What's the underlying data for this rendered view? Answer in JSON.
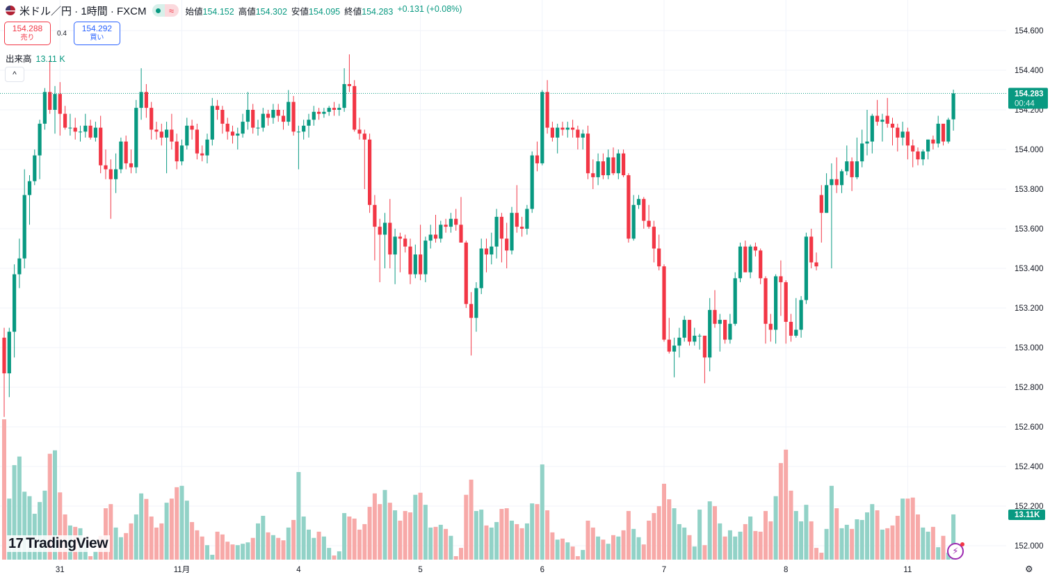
{
  "header": {
    "symbol_title": "米ドル／円 · 1時間 · FXCM",
    "flag_icon": "us-flag-icon",
    "status_icon": "market-open-dot-icon",
    "delay_icon": "approx-icon",
    "delay_symbol": "≈",
    "ohlc": [
      {
        "label": "始値",
        "value": "154.152"
      },
      {
        "label": "高値",
        "value": "154.302"
      },
      {
        "label": "安値",
        "value": "154.095"
      },
      {
        "label": "終値",
        "value": "154.283"
      }
    ],
    "change": "+0.131 (+0.08%)"
  },
  "trade": {
    "sell_price": "154.288",
    "sell_label": "売り",
    "spread": "0.4",
    "buy_price": "154.292",
    "buy_label": "買い"
  },
  "volume_legend": {
    "label": "出来高",
    "value": "13.11 K"
  },
  "collapse_symbol": "^",
  "price_tag": {
    "price": "154.283",
    "countdown": "00:44"
  },
  "volume_tag": "13.11K",
  "logo": "TradingView",
  "colors": {
    "up": "#089981",
    "down": "#f23645",
    "up_volume": "#92d2c7",
    "down_volume": "#f7a9a8",
    "grid": "#f0f3fa"
  },
  "chart_data": {
    "type": "candlestick",
    "timeframe": "1時間",
    "y_ticks": [
      "154.600",
      "154.400",
      "154.200",
      "154.000",
      "153.800",
      "153.600",
      "153.400",
      "153.200",
      "153.000",
      "152.800",
      "152.600",
      "152.400",
      "152.200",
      "152.000"
    ],
    "ylim": [
      152.0,
      154.6
    ],
    "x_ticks": [
      {
        "label": "31",
        "index": 11
      },
      {
        "label": "11月",
        "index": 35
      },
      {
        "label": "4",
        "index": 58
      },
      {
        "label": "5",
        "index": 82
      },
      {
        "label": "6",
        "index": 106
      },
      {
        "label": "7",
        "index": 130
      },
      {
        "label": "8",
        "index": 154
      },
      {
        "label": "11",
        "index": 178
      }
    ],
    "grid": true,
    "last_price": 154.283,
    "ohlc": [
      [
        153.05,
        153.1,
        152.65,
        152.87
      ],
      [
        152.87,
        153.1,
        152.75,
        153.08
      ],
      [
        153.08,
        153.42,
        152.95,
        153.37
      ],
      [
        153.37,
        153.55,
        153.3,
        153.45
      ],
      [
        153.45,
        153.9,
        153.4,
        153.77
      ],
      [
        153.77,
        153.87,
        153.62,
        153.84
      ],
      [
        153.84,
        154.0,
        153.82,
        153.97
      ],
      [
        153.97,
        154.15,
        153.85,
        154.13
      ],
      [
        154.13,
        154.31,
        154.1,
        154.29
      ],
      [
        154.29,
        154.45,
        154.18,
        154.2
      ],
      [
        154.2,
        154.32,
        154.08,
        154.28
      ],
      [
        154.28,
        154.34,
        154.07,
        154.18
      ],
      [
        154.18,
        154.22,
        154.1,
        154.11
      ],
      [
        154.11,
        154.18,
        154.07,
        154.11
      ],
      [
        154.11,
        154.16,
        154.05,
        154.09
      ],
      [
        154.09,
        154.12,
        154.04,
        154.09
      ],
      [
        154.09,
        154.18,
        154.06,
        154.12
      ],
      [
        154.12,
        154.15,
        154.05,
        154.06
      ],
      [
        154.06,
        154.14,
        154.04,
        154.11
      ],
      [
        154.11,
        154.17,
        153.88,
        153.92
      ],
      [
        153.92,
        154.0,
        153.85,
        153.9
      ],
      [
        153.9,
        153.95,
        153.65,
        153.85
      ],
      [
        153.85,
        153.98,
        153.78,
        153.9
      ],
      [
        153.9,
        154.06,
        153.88,
        154.04
      ],
      [
        154.04,
        154.07,
        153.9,
        153.93
      ],
      [
        153.93,
        154.0,
        153.88,
        153.91
      ],
      [
        153.91,
        154.25,
        153.88,
        154.21
      ],
      [
        154.21,
        154.41,
        154.15,
        154.29
      ],
      [
        154.29,
        154.33,
        154.16,
        154.21
      ],
      [
        154.21,
        154.24,
        154.05,
        154.1
      ],
      [
        154.1,
        154.14,
        154.05,
        154.09
      ],
      [
        154.09,
        154.13,
        154.02,
        154.06
      ],
      [
        154.06,
        154.14,
        153.88,
        154.1
      ],
      [
        154.1,
        154.18,
        154.0,
        154.04
      ],
      [
        154.04,
        154.08,
        153.9,
        153.94
      ],
      [
        153.94,
        154.05,
        153.92,
        154.02
      ],
      [
        154.02,
        154.16,
        154.0,
        154.12
      ],
      [
        154.12,
        154.15,
        154.05,
        154.1
      ],
      [
        154.1,
        154.13,
        153.95,
        153.98
      ],
      [
        153.98,
        154.02,
        153.94,
        153.97
      ],
      [
        153.97,
        154.08,
        153.93,
        154.05
      ],
      [
        154.05,
        154.26,
        154.02,
        154.22
      ],
      [
        154.22,
        154.25,
        154.15,
        154.2
      ],
      [
        154.2,
        154.22,
        154.08,
        154.13
      ],
      [
        154.13,
        154.16,
        154.05,
        154.09
      ],
      [
        154.09,
        154.12,
        154.03,
        154.07
      ],
      [
        154.07,
        154.11,
        154.0,
        154.08
      ],
      [
        154.08,
        154.18,
        154.06,
        154.14
      ],
      [
        154.14,
        154.29,
        154.1,
        154.2
      ],
      [
        154.2,
        154.23,
        154.08,
        154.11
      ],
      [
        154.11,
        154.15,
        154.07,
        154.11
      ],
      [
        154.11,
        154.21,
        154.09,
        154.18
      ],
      [
        154.18,
        154.2,
        154.12,
        154.16
      ],
      [
        154.16,
        154.23,
        154.13,
        154.2
      ],
      [
        154.2,
        154.23,
        154.14,
        154.17
      ],
      [
        154.17,
        154.2,
        154.1,
        154.14
      ],
      [
        154.14,
        154.3,
        154.12,
        154.24
      ],
      [
        154.24,
        154.27,
        154.07,
        154.09
      ],
      [
        154.09,
        154.12,
        153.9,
        154.09
      ],
      [
        154.09,
        154.15,
        154.05,
        154.12
      ],
      [
        154.12,
        154.18,
        154.06,
        154.15
      ],
      [
        154.15,
        154.22,
        154.12,
        154.19
      ],
      [
        154.19,
        154.21,
        154.15,
        154.18
      ],
      [
        154.18,
        154.21,
        154.16,
        154.19
      ],
      [
        154.19,
        154.22,
        154.17,
        154.21
      ],
      [
        154.21,
        154.24,
        154.17,
        154.2
      ],
      [
        154.2,
        154.23,
        154.17,
        154.21
      ],
      [
        154.21,
        154.41,
        154.19,
        154.33
      ],
      [
        154.33,
        154.48,
        154.29,
        154.32
      ],
      [
        154.32,
        154.35,
        154.09,
        154.1
      ],
      [
        154.1,
        154.16,
        154.05,
        154.08
      ],
      [
        154.08,
        154.1,
        153.8,
        154.05
      ],
      [
        154.05,
        154.08,
        153.68,
        153.72
      ],
      [
        153.72,
        153.77,
        153.44,
        153.61
      ],
      [
        153.61,
        153.65,
        153.33,
        153.57
      ],
      [
        153.57,
        153.68,
        153.4,
        153.63
      ],
      [
        153.63,
        153.75,
        153.4,
        153.47
      ],
      [
        153.47,
        153.6,
        153.32,
        153.56
      ],
      [
        153.56,
        153.58,
        153.38,
        153.55
      ],
      [
        153.55,
        153.57,
        153.48,
        153.51
      ],
      [
        153.51,
        153.55,
        153.32,
        153.37
      ],
      [
        153.37,
        153.52,
        153.35,
        153.47
      ],
      [
        153.47,
        153.62,
        153.34,
        153.37
      ],
      [
        153.37,
        153.56,
        153.33,
        153.54
      ],
      [
        153.54,
        153.62,
        153.5,
        153.57
      ],
      [
        153.57,
        153.67,
        153.53,
        153.55
      ],
      [
        153.55,
        153.64,
        153.53,
        153.62
      ],
      [
        153.62,
        153.65,
        153.58,
        153.61
      ],
      [
        153.61,
        153.68,
        153.58,
        153.65
      ],
      [
        153.65,
        153.7,
        153.59,
        153.62
      ],
      [
        153.62,
        153.76,
        153.53,
        153.53
      ],
      [
        153.53,
        153.54,
        153.2,
        153.22
      ],
      [
        153.22,
        153.28,
        152.96,
        153.15
      ],
      [
        153.15,
        153.33,
        153.08,
        153.3
      ],
      [
        153.3,
        153.55,
        153.27,
        153.5
      ],
      [
        153.5,
        153.55,
        153.38,
        153.47
      ],
      [
        153.47,
        153.58,
        153.42,
        153.51
      ],
      [
        153.51,
        153.7,
        153.45,
        153.66
      ],
      [
        153.66,
        153.68,
        153.43,
        153.55
      ],
      [
        153.55,
        153.63,
        153.4,
        153.49
      ],
      [
        153.49,
        153.71,
        153.47,
        153.68
      ],
      [
        153.68,
        153.82,
        153.58,
        153.61
      ],
      [
        153.61,
        153.66,
        153.56,
        153.6
      ],
      [
        153.6,
        153.72,
        153.57,
        153.7
      ],
      [
        153.7,
        153.99,
        153.68,
        153.97
      ],
      [
        153.97,
        154.04,
        153.89,
        153.93
      ],
      [
        153.93,
        154.3,
        153.92,
        154.29
      ],
      [
        154.29,
        154.35,
        154.08,
        154.11
      ],
      [
        154.11,
        154.14,
        154.04,
        154.06
      ],
      [
        154.06,
        154.13,
        153.98,
        154.11
      ],
      [
        154.11,
        154.14,
        154.07,
        154.1
      ],
      [
        154.1,
        154.14,
        154.06,
        154.11
      ],
      [
        154.11,
        154.15,
        154.06,
        154.1
      ],
      [
        154.1,
        154.12,
        154.0,
        154.06
      ],
      [
        154.06,
        154.1,
        154.0,
        154.08
      ],
      [
        154.08,
        154.12,
        153.85,
        153.88
      ],
      [
        153.88,
        153.95,
        153.8,
        153.86
      ],
      [
        153.86,
        153.98,
        153.82,
        153.94
      ],
      [
        153.94,
        153.98,
        153.85,
        153.87
      ],
      [
        153.87,
        154.0,
        153.85,
        153.96
      ],
      [
        153.96,
        154.01,
        153.87,
        153.88
      ],
      [
        153.88,
        154.0,
        153.85,
        153.98
      ],
      [
        153.98,
        154.0,
        153.86,
        153.87
      ],
      [
        153.87,
        153.88,
        153.53,
        153.55
      ],
      [
        153.55,
        153.77,
        153.54,
        153.72
      ],
      [
        153.72,
        153.77,
        153.7,
        153.75
      ],
      [
        153.75,
        153.76,
        153.6,
        153.64
      ],
      [
        153.64,
        153.72,
        153.6,
        153.61
      ],
      [
        153.61,
        153.64,
        153.43,
        153.5
      ],
      [
        153.5,
        153.57,
        153.39,
        153.41
      ],
      [
        153.41,
        153.42,
        153.03,
        153.04
      ],
      [
        153.04,
        153.15,
        152.97,
        152.98
      ],
      [
        152.98,
        153.05,
        152.85,
        153.01
      ],
      [
        153.01,
        153.1,
        152.95,
        153.05
      ],
      [
        153.05,
        153.16,
        153.03,
        153.14
      ],
      [
        153.14,
        153.14,
        153.01,
        153.03
      ],
      [
        153.03,
        153.1,
        153.01,
        153.06
      ],
      [
        153.06,
        153.07,
        152.99,
        153.06
      ],
      [
        153.06,
        153.06,
        152.82,
        152.95
      ],
      [
        152.95,
        153.25,
        152.88,
        153.19
      ],
      [
        153.19,
        153.29,
        153.1,
        153.12
      ],
      [
        153.12,
        153.17,
        152.98,
        153.14
      ],
      [
        153.14,
        153.14,
        153.02,
        153.04
      ],
      [
        153.04,
        153.17,
        153.02,
        153.12
      ],
      [
        153.12,
        153.38,
        153.11,
        153.35
      ],
      [
        153.35,
        153.53,
        153.33,
        153.51
      ],
      [
        153.51,
        153.54,
        153.38,
        153.38
      ],
      [
        153.38,
        153.52,
        153.35,
        153.51
      ],
      [
        153.51,
        153.53,
        153.46,
        153.49
      ],
      [
        153.49,
        153.5,
        153.32,
        153.35
      ],
      [
        153.35,
        153.36,
        153.02,
        153.12
      ],
      [
        153.12,
        153.17,
        153.03,
        153.09
      ],
      [
        153.09,
        153.37,
        153.02,
        153.36
      ],
      [
        153.36,
        153.44,
        153.16,
        153.33
      ],
      [
        153.33,
        153.34,
        153.02,
        153.13
      ],
      [
        153.13,
        153.17,
        153.03,
        153.06
      ],
      [
        153.06,
        153.25,
        153.05,
        153.09
      ],
      [
        153.09,
        153.26,
        153.05,
        153.24
      ],
      [
        153.24,
        153.58,
        153.22,
        153.56
      ],
      [
        153.56,
        153.6,
        153.4,
        153.43
      ],
      [
        153.43,
        153.48,
        153.39,
        153.41
      ],
      [
        153.77,
        153.82,
        153.53,
        153.68
      ],
      [
        153.68,
        153.88,
        153.68,
        153.82
      ],
      [
        153.82,
        153.93,
        153.4,
        153.85
      ],
      [
        153.85,
        153.96,
        153.78,
        153.82
      ],
      [
        153.82,
        153.9,
        153.78,
        153.89
      ],
      [
        153.89,
        154.02,
        153.87,
        153.94
      ],
      [
        153.94,
        153.96,
        153.79,
        153.86
      ],
      [
        153.86,
        154.06,
        153.85,
        153.94
      ],
      [
        153.94,
        154.1,
        153.91,
        154.03
      ],
      [
        154.03,
        154.2,
        153.97,
        154.04
      ],
      [
        154.04,
        154.18,
        153.98,
        154.17
      ],
      [
        154.17,
        154.25,
        154.12,
        154.14
      ],
      [
        154.14,
        154.18,
        154.04,
        154.15
      ],
      [
        154.17,
        154.26,
        154.11,
        154.13
      ],
      [
        154.13,
        154.16,
        154.02,
        154.11
      ],
      [
        154.11,
        154.13,
        153.99,
        154.06
      ],
      [
        154.06,
        154.14,
        154.02,
        154.09
      ],
      [
        154.09,
        154.11,
        153.95,
        154.02
      ],
      [
        154.02,
        154.05,
        153.91,
        153.99
      ],
      [
        153.99,
        154.01,
        153.92,
        153.95
      ],
      [
        153.95,
        154.0,
        153.92,
        153.99
      ],
      [
        153.99,
        154.05,
        153.95,
        154.05
      ],
      [
        154.05,
        154.07,
        154.0,
        154.03
      ],
      [
        154.03,
        154.17,
        154.01,
        154.13
      ],
      [
        154.13,
        154.13,
        154.02,
        154.04
      ],
      [
        154.04,
        154.16,
        154.03,
        154.15
      ],
      [
        154.152,
        154.302,
        154.095,
        154.283
      ]
    ],
    "volume_k": [
      40.7,
      17.7,
      27.4,
      29.9,
      19.7,
      18.4,
      13.3,
      16.7,
      20.0,
      30.7,
      31.7,
      19.5,
      13.1,
      9.9,
      9.5,
      9.1,
      5.0,
      1.0,
      2.4,
      6.9,
      14.9,
      16.1,
      9.3,
      6.5,
      7.7,
      10.5,
      13.1,
      19.2,
      17.6,
      12.5,
      9.3,
      10.5,
      16.5,
      17.7,
      21.0,
      21.4,
      17.1,
      10.9,
      8.5,
      6.7,
      4.2,
      1.4,
      8.1,
      7.3,
      5.2,
      4.4,
      4.2,
      4.6,
      5.0,
      6.3,
      10.5,
      12.7,
      7.9,
      7.1,
      6.3,
      5.6,
      9.3,
      11.5,
      25.4,
      12.5,
      8.7,
      6.3,
      8.1,
      6.7,
      3.4,
      1.2,
      2.4,
      13.5,
      12.5,
      11.9,
      8.7,
      10.3,
      15.3,
      19.2,
      16.1,
      20.2,
      16.5,
      14.3,
      11.3,
      14.1,
      13.7,
      18.8,
      19.4,
      15.9,
      9.3,
      9.5,
      10.1,
      8.9,
      6.9,
      1.0,
      3.4,
      18.8,
      23.2,
      14.1,
      14.5,
      9.9,
      9.3,
      10.9,
      14.7,
      14.9,
      11.3,
      10.3,
      9.1,
      10.5,
      16.3,
      16.1,
      27.6,
      14.3,
      7.9,
      5.8,
      6.1,
      5.0,
      3.8,
      1.0,
      2.8,
      11.3,
      9.3,
      6.7,
      5.8,
      4.6,
      7.1,
      6.7,
      8.5,
      14.1,
      8.9,
      6.5,
      4.4,
      11.3,
      13.5,
      15.5,
      22.0,
      17.5,
      14.9,
      10.3,
      9.3,
      7.1,
      3.8,
      14.5,
      4.2,
      16.9,
      15.5,
      10.5,
      6.7,
      8.5,
      6.7,
      8.1,
      10.3,
      12.5,
      8.3,
      8.1,
      14.1,
      11.1,
      18.4,
      28.0,
      31.9,
      20.0,
      14.1,
      11.1,
      15.9,
      11.1,
      3.4,
      2.0,
      8.9,
      21.4,
      14.9,
      9.1,
      10.1,
      8.9,
      11.7,
      11.5,
      13.7,
      16.1,
      14.3,
      8.7,
      9.1,
      9.9,
      12.7,
      17.7,
      17.7,
      18.0,
      13.1,
      9.3,
      8.1,
      9.5,
      3.6,
      6.9,
      2.0,
      13.11
    ]
  },
  "icons": {
    "lightning": "lightning-icon",
    "settings": "settings-icon",
    "logo": "tradingview-logo"
  }
}
